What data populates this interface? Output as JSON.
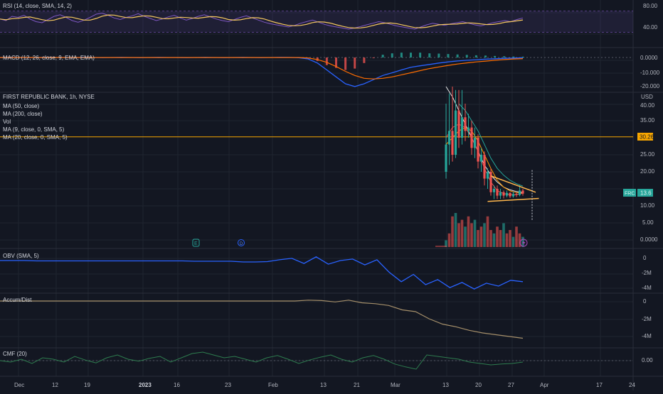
{
  "colors": {
    "background": "#131722",
    "grid": "#1f2430",
    "separator": "#2a2e39",
    "rsi_line": "#7e57c2",
    "rsi_sma": "#f6c85f",
    "rsi_band": "#7e57c2",
    "macd_line": "#2962ff",
    "signal_line": "#ff6d00",
    "hist_up": "#26a69a",
    "hist_down": "#ef5350",
    "ma50": "#26a69a",
    "ma200": "#e8e8e8",
    "ma9": "#ef5350",
    "ma20": "#ff9800",
    "candle_up": "#26a69a",
    "candle_down": "#ef5350",
    "hline": "#f7a600",
    "trendline": "#ffb74d",
    "obv": "#2962ff",
    "accum": "#a58f6a",
    "cmf": "#2e7d4f",
    "price_tag": "#26a69a"
  },
  "panes": {
    "rsi": {
      "label": "RSI (14, close, SMA, 14, 2)",
      "ticks": [
        "80.00",
        "40.00"
      ],
      "values": [
        55,
        52,
        60,
        58,
        62,
        55,
        50,
        48,
        54,
        60,
        63,
        58,
        52,
        49,
        53,
        58,
        64,
        66,
        62,
        57,
        54,
        58,
        61,
        65,
        60,
        56,
        52,
        55,
        59,
        62,
        57,
        53,
        56,
        60,
        63,
        59,
        55,
        52,
        50,
        54,
        58,
        61,
        57,
        53,
        49,
        46,
        44,
        42,
        40,
        43,
        47,
        50,
        53,
        49,
        45,
        42,
        40,
        38,
        36,
        38,
        41,
        44,
        47,
        50,
        48,
        45,
        42,
        40,
        38,
        36,
        40,
        44,
        47,
        45,
        43,
        46,
        48,
        50,
        47,
        44,
        42,
        45,
        48,
        50,
        52,
        50,
        54,
        57
      ]
    },
    "macd": {
      "label": "MACD (12, 26, close, 9, EMA, EMA)",
      "ticks": [
        "0.0000",
        "-10.000",
        "-20.000"
      ],
      "macd": [
        0,
        0.1,
        0,
        -0.1,
        0,
        0.1,
        0,
        0,
        -0.1,
        0.1,
        0,
        -0.1,
        0,
        0.1,
        0,
        -0.1,
        0,
        0.1,
        0,
        0,
        -0.1,
        0,
        0.1,
        0,
        -0.1,
        0,
        0.1,
        0,
        -0.1,
        0,
        0.2,
        0.1,
        -0.2,
        -1,
        -4,
        -9,
        -14,
        -19,
        -21,
        -19,
        -16,
        -13,
        -11,
        -9,
        -7,
        -6,
        -5,
        -4,
        -3.2,
        -2.5,
        -2,
        -1.6,
        -1.2,
        -0.9,
        -0.6,
        -0.4,
        -0.2
      ],
      "signal": [
        0,
        0,
        0,
        0,
        0,
        0,
        0,
        0,
        0,
        0,
        0,
        0,
        0,
        0,
        0,
        0,
        0,
        0,
        0,
        0,
        0,
        0,
        0,
        0,
        0,
        0,
        0,
        0,
        0,
        0,
        0,
        0,
        0,
        -0.3,
        -1.5,
        -3.5,
        -6.5,
        -10,
        -13,
        -15,
        -15.5,
        -15,
        -14,
        -12.5,
        -11,
        -9.5,
        -8,
        -6.8,
        -5.7,
        -4.7,
        -3.9,
        -3.2,
        -2.6,
        -2,
        -1.5,
        -1.1,
        -0.8
      ],
      "hist": [
        0,
        0,
        0,
        0,
        0,
        0,
        0,
        0,
        0,
        0,
        0,
        0,
        0,
        0,
        0,
        0,
        0,
        0,
        0,
        0,
        0,
        0,
        0,
        0,
        0,
        0,
        0,
        0,
        0,
        0,
        0.2,
        0.1,
        -0.2,
        -0.7,
        -2.5,
        -5.5,
        -7.5,
        -9,
        -8,
        -4,
        -0.5,
        2,
        3,
        3.5,
        3.5,
        3.5,
        3,
        2.8,
        2.5,
        2.2,
        1.9,
        1.6,
        1.4,
        1.1,
        0.9,
        0.7,
        0.6
      ]
    },
    "price": {
      "title": "FIRST REPUBLIC BANK, 1h, NYSE",
      "legend": [
        "MA (50, close)",
        "MA (200, close)",
        "Vol",
        "MA (9, close, 0, SMA, 5)",
        "MA (20, close, 0, SMA, 5)"
      ],
      "currency": "USD",
      "ticks": [
        "45.00",
        "40.00",
        "35.00",
        "25.00",
        "20.00",
        "15.00",
        "10.00",
        "5.00",
        "0.0000"
      ],
      "hline_label": "30.26",
      "hline_value": 30.26,
      "last_symbol": "FRC",
      "last_price": "13.6",
      "event_e": "E",
      "event_d": "D",
      "candles": [
        [
          122,
          20,
          28,
          40,
          18
        ],
        [
          123,
          28,
          32,
          43,
          22
        ],
        [
          124,
          32,
          25,
          45,
          23
        ],
        [
          125,
          25,
          38,
          44,
          24
        ],
        [
          126,
          38,
          30,
          44,
          27
        ],
        [
          127,
          30,
          36,
          44,
          28
        ],
        [
          128,
          36,
          32,
          40,
          29
        ],
        [
          129,
          32,
          33,
          37,
          30
        ],
        [
          130,
          33,
          27,
          35,
          25
        ],
        [
          131,
          27,
          30,
          33,
          24
        ],
        [
          132,
          30,
          23,
          31,
          21
        ],
        [
          133,
          23,
          25,
          27,
          20
        ],
        [
          134,
          25,
          18,
          26,
          16
        ],
        [
          135,
          18,
          20,
          21,
          15
        ],
        [
          136,
          20,
          14,
          21,
          13
        ],
        [
          137,
          14,
          15,
          16,
          12
        ],
        [
          138,
          15,
          13,
          16,
          12
        ],
        [
          139,
          13,
          14,
          15,
          12
        ],
        [
          140,
          14,
          13,
          14.5,
          12.2
        ],
        [
          141,
          13,
          13.8,
          14.5,
          12.5
        ],
        [
          142,
          13.8,
          12.8,
          14,
          12.3
        ],
        [
          143,
          12.8,
          13.5,
          14.2,
          12.4
        ],
        [
          144,
          13.5,
          13.2,
          14,
          12.6
        ],
        [
          145,
          13.2,
          14.5,
          16,
          12.8
        ],
        [
          146,
          14.5,
          13.6,
          15,
          13
        ]
      ],
      "ma9": [
        [
          122,
          30
        ],
        [
          124,
          33
        ],
        [
          126,
          34
        ],
        [
          128,
          33
        ],
        [
          130,
          30
        ],
        [
          132,
          26
        ],
        [
          134,
          21
        ],
        [
          136,
          17
        ],
        [
          138,
          14.5
        ],
        [
          140,
          13.6
        ],
        [
          142,
          13.3
        ],
        [
          144,
          13.3
        ],
        [
          146,
          13.7
        ]
      ],
      "ma20": [
        [
          122,
          28
        ],
        [
          124,
          30
        ],
        [
          126,
          32
        ],
        [
          128,
          33
        ],
        [
          130,
          32
        ],
        [
          132,
          29
        ],
        [
          134,
          25
        ],
        [
          136,
          21
        ],
        [
          138,
          17.5
        ],
        [
          140,
          15.5
        ],
        [
          142,
          14.4
        ],
        [
          144,
          13.9
        ],
        [
          146,
          13.7
        ]
      ],
      "ma50": [
        [
          126,
          40
        ],
        [
          128,
          38
        ],
        [
          130,
          35
        ],
        [
          132,
          32
        ],
        [
          134,
          28
        ],
        [
          136,
          24
        ],
        [
          138,
          21
        ],
        [
          140,
          19
        ],
        [
          142,
          17.5
        ],
        [
          144,
          16.5
        ],
        [
          146,
          15.8
        ]
      ],
      "ma200": [
        [
          122,
          45
        ],
        [
          124,
          42
        ],
        [
          126,
          38
        ],
        [
          128,
          34
        ],
        [
          130,
          30
        ],
        [
          132,
          26
        ],
        [
          134,
          22
        ],
        [
          136,
          19
        ],
        [
          138,
          17
        ],
        [
          140,
          15.5
        ],
        [
          142,
          14.7
        ],
        [
          144,
          14.2
        ],
        [
          146,
          13.9
        ]
      ],
      "volume": [
        0.2,
        0.4,
        0.9,
        1,
        0.7,
        0.8,
        0.6,
        0.9,
        0.7,
        0.8,
        0.5,
        0.6,
        0.7,
        0.9,
        0.5,
        0.4,
        0.6,
        0.5,
        0.7,
        0.4,
        0.5,
        0.3,
        0.6,
        0.4,
        0.3
      ],
      "triangle_upper": [
        [
          136,
          18.8
        ],
        [
          150,
          14
        ]
      ],
      "triangle_lower": [
        [
          135,
          11.3
        ],
        [
          151,
          12.2
        ]
      ]
    },
    "obv": {
      "label": "OBV (SMA, 5)",
      "ticks": [
        "0",
        "-2M",
        "-4M"
      ],
      "values": [
        0.1,
        0.1,
        0.1,
        0.05,
        0.05,
        0.05,
        0.05,
        0.05,
        0.05,
        0.05,
        0.05,
        0.05,
        0.05,
        0.05,
        0.05,
        0.05,
        0.0,
        0.0,
        0.0,
        0.0,
        -0.1,
        -0.1,
        -0.05,
        0.2,
        0.4,
        -0.3,
        0.6,
        -0.4,
        0.1,
        0.3,
        -0.5,
        0.2,
        -1.5,
        -2.8,
        -1.8,
        -3.2,
        -2.5,
        -3.6,
        -2.9,
        -3.8,
        -3.0,
        -3.4,
        -2.6,
        -2.8
      ]
    },
    "accum": {
      "label": "Accum/Dist",
      "ticks": [
        "0",
        "-2M",
        "-4M"
      ],
      "values": [
        0,
        0,
        0,
        0,
        0,
        0,
        0,
        0,
        0,
        0,
        0,
        0,
        0,
        0,
        0,
        0,
        0,
        0,
        0,
        0,
        0,
        0,
        0,
        0.1,
        0.05,
        -0.1,
        0.1,
        -0.2,
        -0.3,
        -0.5,
        -1.0,
        -1.2,
        -2.0,
        -2.6,
        -2.9,
        -3.3,
        -3.6,
        -3.8,
        -4.0,
        -4.2
      ]
    },
    "cmf": {
      "label": "CMF (20)",
      "ticks": [
        "0.00"
      ],
      "values": [
        0,
        -0.05,
        0.05,
        -0.1,
        0.1,
        0.05,
        -0.05,
        0.15,
        0.02,
        -0.08,
        0.1,
        0.2,
        0.05,
        -0.02,
        0.08,
        0.15,
        -0.05,
        0.1,
        0.25,
        0.3,
        0.2,
        0.1,
        0.15,
        0.05,
        -0.05,
        0.1,
        0.18,
        0.05,
        -0.1,
        0.02,
        0.12,
        0.2,
        0.05,
        -0.05,
        0.1,
        0.18,
        0.05,
        -0.12,
        -0.22,
        -0.3,
        0.2,
        0.15,
        0.1,
        0.05,
        -0.05,
        -0.1,
        -0.15,
        -0.12,
        -0.1,
        -0.05
      ]
    }
  },
  "time_axis": {
    "labels": [
      "Dec",
      "12",
      "19",
      "2023",
      "16",
      "23",
      "Feb",
      "13",
      "21",
      "Mar",
      "13",
      "20",
      "27",
      "Apr",
      "17",
      "24"
    ]
  }
}
